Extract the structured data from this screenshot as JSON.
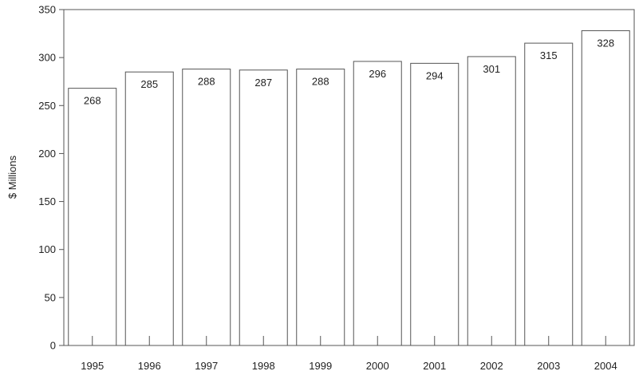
{
  "chart_data": {
    "type": "bar",
    "title": "",
    "xlabel": "",
    "ylabel": "$ Millions",
    "categories": [
      "1995",
      "1996",
      "1997",
      "1998",
      "1999",
      "2000",
      "2001",
      "2002",
      "2003",
      "2004"
    ],
    "values": [
      268,
      285,
      288,
      287,
      288,
      296,
      294,
      301,
      315,
      328
    ],
    "data_labels": [
      "268",
      "285",
      "288",
      "287",
      "288",
      "296",
      "294",
      "301",
      "315",
      "328"
    ],
    "ylim": [
      0,
      350
    ],
    "yticks": [
      0,
      50,
      100,
      150,
      200,
      250,
      300,
      350
    ],
    "ytick_labels": [
      "0",
      "50",
      "100",
      "150",
      "200",
      "250",
      "300",
      "350"
    ],
    "grid": false,
    "legend": "none",
    "colors": {
      "bar_fill": "#ffffff",
      "bar_stroke": "#555555",
      "axis": "#555555",
      "text": "#222222"
    }
  }
}
